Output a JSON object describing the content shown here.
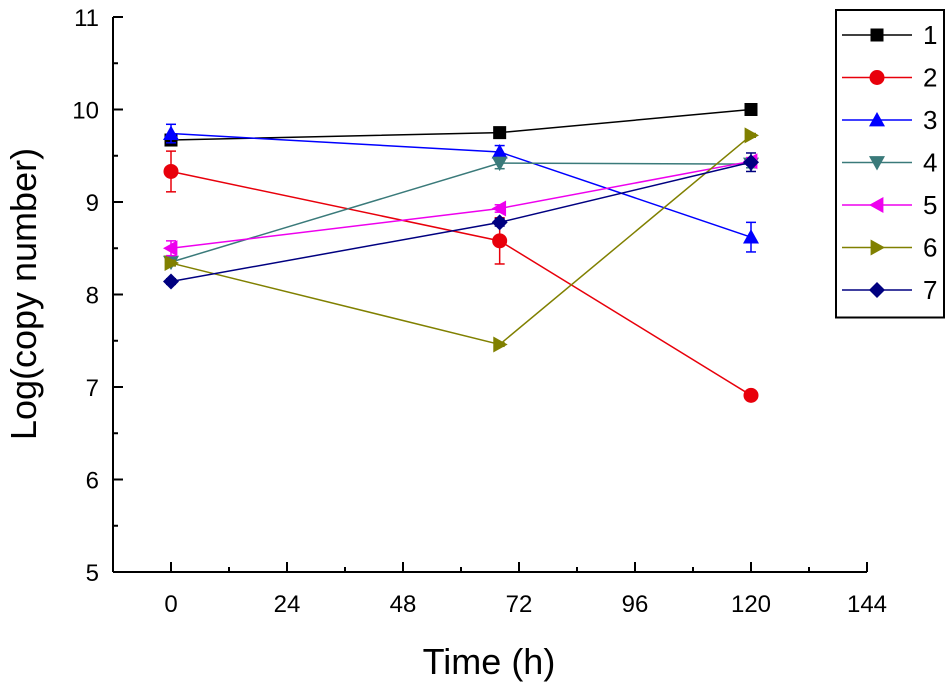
{
  "chart_data": {
    "type": "line",
    "title": "",
    "xlabel": "Time (h)",
    "ylabel": "Log(copy number)",
    "xlim": [
      -12,
      144
    ],
    "ylim": [
      5,
      11
    ],
    "xticks": [
      0,
      24,
      48,
      72,
      96,
      120,
      144
    ],
    "yticks": [
      5,
      6,
      7,
      8,
      9,
      10,
      11
    ],
    "grid": false,
    "legend_position": "top-right",
    "x": [
      0,
      68,
      120
    ],
    "series": [
      {
        "name": "1",
        "color": "#000000",
        "marker": "square",
        "values": [
          9.67,
          9.75,
          10.0
        ],
        "errors": [
          0.04,
          0.04,
          0.06
        ]
      },
      {
        "name": "2",
        "color": "#e8000b",
        "marker": "circle",
        "values": [
          9.33,
          8.58,
          6.91
        ],
        "errors": [
          0.22,
          0.25,
          0.02
        ]
      },
      {
        "name": "3",
        "color": "#0000ff",
        "marker": "triangle-up",
        "values": [
          9.74,
          9.54,
          8.62
        ],
        "errors": [
          0.1,
          0.07,
          0.16
        ]
      },
      {
        "name": "4",
        "color": "#3a7a7a",
        "marker": "triangle-down",
        "values": [
          8.35,
          9.42,
          9.41
        ],
        "errors": [
          0.04,
          0.06,
          0.04
        ]
      },
      {
        "name": "5",
        "color": "#ee00ee",
        "marker": "triangle-left",
        "values": [
          8.5,
          8.93,
          9.44
        ],
        "errors": [
          0.08,
          0.04,
          0.04
        ]
      },
      {
        "name": "6",
        "color": "#808000",
        "marker": "triangle-right",
        "values": [
          8.34,
          7.46,
          9.72
        ],
        "errors": [
          0.03,
          0.02,
          0.02
        ]
      },
      {
        "name": "7",
        "color": "#000080",
        "marker": "diamond",
        "values": [
          8.14,
          8.78,
          9.43
        ],
        "errors": [
          0.03,
          0.04,
          0.1
        ]
      }
    ]
  }
}
